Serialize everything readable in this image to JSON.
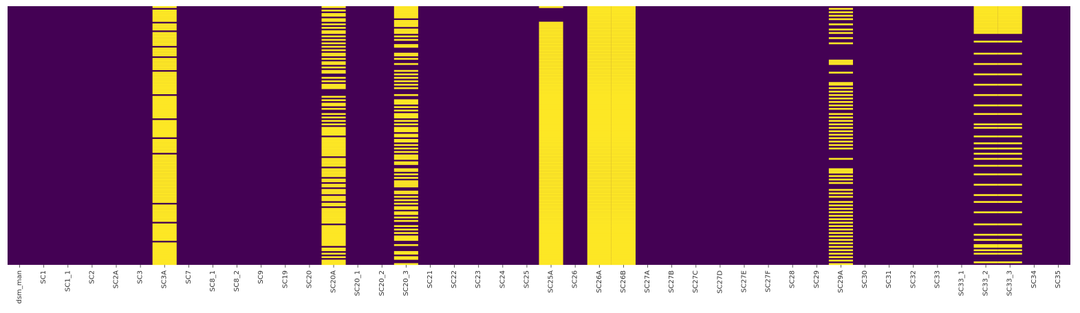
{
  "chart_data": {
    "type": "heatmap",
    "title": "",
    "xlabel": "",
    "ylabel": "",
    "colormap": "viridis",
    "value_meaning": "missing (1) vs present (0)",
    "colors": {
      "present": "#440154",
      "missing": "#fde725"
    },
    "ylim_rows": 150,
    "columns": [
      "dsm_man",
      "SC1",
      "SC1_1",
      "SC2",
      "SC2A",
      "SC3",
      "SC3A",
      "SC7",
      "SC8_1",
      "SC8_2",
      "SC9",
      "SC19",
      "SC20",
      "SC20A",
      "SC20_1",
      "SC20_2",
      "SC20_3",
      "SC21",
      "SC22",
      "SC23",
      "SC24",
      "SC25",
      "SC25A",
      "SC26",
      "SC26A",
      "SC26B",
      "SC27A",
      "SC27B",
      "SC27C",
      "SC27D",
      "SC27E",
      "SC27F",
      "SC28",
      "SC29",
      "SC29A",
      "SC30",
      "SC31",
      "SC32",
      "SC33",
      "SC33_1",
      "SC33_2",
      "SC33_3",
      "SC34",
      "SC35"
    ],
    "missing_rows": {
      "SC3A": [
        0,
        2,
        3,
        4,
        5,
        6,
        7,
        8,
        10,
        11,
        12,
        13,
        15,
        16,
        17,
        18,
        19,
        20,
        21,
        22,
        24,
        25,
        26,
        27,
        28,
        30,
        31,
        32,
        33,
        34,
        35,
        36,
        38,
        39,
        40,
        41,
        42,
        43,
        44,
        45,
        46,
        47,
        48,
        49,
        50,
        52,
        53,
        54,
        55,
        56,
        57,
        58,
        59,
        60,
        61,
        62,
        63,
        64,
        66,
        67,
        68,
        69,
        70,
        71,
        72,
        73,
        74,
        75,
        77,
        78,
        79,
        80,
        81,
        82,
        83,
        84,
        86,
        87,
        88,
        89,
        90,
        91,
        92,
        93,
        94,
        95,
        96,
        97,
        98,
        99,
        100,
        101,
        102,
        103,
        104,
        105,
        106,
        107,
        108,
        109,
        110,
        111,
        112,
        113,
        115,
        116,
        117,
        118,
        119,
        120,
        121,
        122,
        123,
        124,
        126,
        127,
        128,
        129,
        130,
        131,
        132,
        133,
        134,
        135,
        137,
        138,
        139,
        140,
        141,
        142,
        143,
        144,
        145,
        146,
        147,
        148,
        149
      ],
      "SC20A": [
        0,
        2,
        4,
        5,
        7,
        8,
        10,
        12,
        14,
        15,
        17,
        19,
        21,
        23,
        25,
        27,
        28,
        30,
        32,
        33,
        35,
        37,
        38,
        41,
        43,
        45,
        46,
        47,
        52,
        54,
        56,
        57,
        59,
        62,
        64,
        66,
        68,
        70,
        71,
        72,
        73,
        74,
        76,
        77,
        78,
        79,
        80,
        81,
        82,
        83,
        84,
        85,
        86,
        88,
        89,
        90,
        91,
        92,
        94,
        95,
        96,
        97,
        98,
        100,
        101,
        103,
        104,
        106,
        107,
        108,
        110,
        111,
        112,
        114,
        115,
        117,
        118,
        119,
        120,
        121,
        122,
        123,
        124,
        125,
        127,
        128,
        129,
        130,
        131,
        132,
        133,
        134,
        135,
        136,
        137,
        138,
        140,
        141,
        143,
        145,
        147,
        148,
        149
      ],
      "SC20_3": [
        0,
        1,
        2,
        3,
        4,
        5,
        6,
        8,
        9,
        10,
        11,
        13,
        14,
        15,
        17,
        19,
        22,
        23,
        27,
        28,
        30,
        33,
        37,
        39,
        41,
        43,
        45,
        47,
        51,
        54,
        55,
        56,
        58,
        60,
        62,
        63,
        64,
        66,
        68,
        70,
        71,
        72,
        74,
        75,
        77,
        78,
        80,
        82,
        84,
        86,
        87,
        88,
        90,
        91,
        94,
        95,
        97,
        99,
        101,
        102,
        103,
        104,
        107,
        108,
        110,
        112,
        114,
        116,
        117,
        119,
        120,
        122,
        124,
        127,
        129,
        131,
        133,
        134,
        135,
        138,
        142,
        143,
        145,
        146,
        149
      ],
      "SC25A": [
        0,
        9,
        10,
        11,
        12,
        13,
        14,
        15,
        16,
        17,
        18,
        19,
        20,
        21,
        22,
        23,
        24,
        25,
        26,
        27,
        28,
        29,
        30,
        31,
        32,
        33,
        34,
        35,
        36,
        37,
        38,
        39,
        40,
        41,
        42,
        43,
        44,
        45,
        46,
        47,
        48,
        49,
        50,
        51,
        52,
        53,
        54,
        55,
        56,
        57,
        58,
        59,
        60,
        61,
        62,
        63,
        64,
        65,
        66,
        67,
        68,
        69,
        70,
        71,
        72,
        73,
        74,
        75,
        76,
        77,
        78,
        79,
        80,
        81,
        82,
        83,
        84,
        85,
        86,
        87,
        88,
        89,
        90,
        91,
        92,
        93,
        94,
        95,
        96,
        97,
        98,
        99,
        100,
        101,
        102,
        103,
        104,
        105,
        106,
        107,
        108,
        109,
        110,
        111,
        112,
        113,
        114,
        115,
        116,
        117,
        118,
        119,
        120,
        121,
        122,
        123,
        124,
        125,
        126,
        127,
        128,
        129,
        130,
        131,
        132,
        133,
        134,
        135,
        136,
        137,
        138,
        139,
        140,
        141,
        142,
        143,
        144,
        145,
        146,
        147,
        148,
        149
      ],
      "SC26A": [
        0,
        1,
        2,
        3,
        4,
        5,
        6,
        7,
        8,
        9,
        10,
        11,
        12,
        13,
        14,
        15,
        16,
        17,
        18,
        19,
        20,
        21,
        22,
        23,
        24,
        25,
        26,
        27,
        28,
        29,
        30,
        31,
        32,
        33,
        34,
        35,
        36,
        37,
        38,
        39,
        40,
        41,
        42,
        43,
        44,
        45,
        46,
        47,
        48,
        49,
        50,
        51,
        52,
        53,
        54,
        55,
        56,
        57,
        58,
        59,
        60,
        61,
        62,
        63,
        64,
        65,
        66,
        67,
        68,
        69,
        70,
        71,
        72,
        73,
        74,
        75,
        76,
        77,
        78,
        79,
        80,
        81,
        82,
        83,
        84,
        85,
        86,
        87,
        88,
        89,
        90,
        91,
        92,
        93,
        94,
        95,
        96,
        97,
        98,
        99,
        100,
        101,
        102,
        103,
        104,
        105,
        106,
        107,
        108,
        109,
        110,
        111,
        112,
        113,
        114,
        115,
        116,
        117,
        118,
        119,
        120,
        121,
        122,
        123,
        124,
        125,
        126,
        127,
        128,
        129,
        130,
        131,
        132,
        133,
        134,
        135,
        136,
        137,
        138,
        139,
        140,
        141,
        142,
        143,
        144,
        145,
        146,
        147,
        148,
        149
      ],
      "SC26B": [
        0,
        1,
        2,
        3,
        4,
        5,
        6,
        7,
        8,
        9,
        10,
        11,
        12,
        13,
        14,
        15,
        16,
        17,
        18,
        19,
        20,
        21,
        22,
        23,
        24,
        25,
        26,
        27,
        28,
        29,
        30,
        31,
        32,
        33,
        34,
        35,
        36,
        37,
        38,
        39,
        40,
        41,
        42,
        43,
        44,
        45,
        46,
        47,
        48,
        49,
        50,
        51,
        52,
        53,
        54,
        55,
        56,
        57,
        58,
        59,
        60,
        61,
        62,
        63,
        64,
        65,
        66,
        67,
        68,
        69,
        70,
        71,
        72,
        73,
        74,
        75,
        76,
        77,
        78,
        79,
        80,
        81,
        82,
        83,
        84,
        85,
        86,
        87,
        88,
        89,
        90,
        91,
        92,
        93,
        94,
        95,
        96,
        97,
        98,
        99,
        100,
        101,
        102,
        103,
        104,
        105,
        106,
        107,
        108,
        109,
        110,
        111,
        112,
        113,
        114,
        115,
        116,
        117,
        118,
        119,
        120,
        121,
        122,
        123,
        124,
        125,
        126,
        127,
        128,
        129,
        130,
        131,
        132,
        133,
        134,
        135,
        136,
        137,
        138,
        139,
        140,
        141,
        142,
        143,
        144,
        145,
        146,
        147,
        148,
        149
      ],
      "SC29A": [
        1,
        3,
        5,
        7,
        10,
        13,
        15,
        18,
        21,
        31,
        32,
        33,
        38,
        44,
        45,
        47,
        49,
        51,
        53,
        55,
        57,
        59,
        62,
        64,
        66,
        68,
        70,
        72,
        74,
        76,
        78,
        80,
        82,
        88,
        94,
        95,
        96,
        98,
        100,
        102,
        106,
        108,
        110,
        113,
        115,
        117,
        119,
        121,
        123,
        125,
        127,
        129,
        131,
        133,
        135,
        137,
        139,
        141,
        143,
        145,
        147,
        149
      ],
      "SC33_2": [
        0,
        1,
        2,
        3,
        4,
        5,
        6,
        7,
        8,
        9,
        10,
        11,
        12,
        13,
        14,
        15,
        20,
        27,
        33,
        39,
        45,
        51,
        57,
        62,
        68,
        70,
        75,
        79,
        82,
        85,
        88,
        92,
        97,
        103,
        109,
        113,
        119,
        126,
        132,
        135,
        138,
        139,
        141,
        143,
        148
      ],
      "SC33_3": [
        0,
        1,
        2,
        3,
        4,
        5,
        6,
        7,
        8,
        9,
        10,
        11,
        12,
        13,
        14,
        15,
        20,
        27,
        33,
        39,
        45,
        51,
        57,
        62,
        68,
        70,
        75,
        79,
        82,
        85,
        88,
        92,
        97,
        103,
        109,
        113,
        119,
        126,
        132,
        135,
        138,
        139,
        141,
        143,
        148
      ]
    }
  }
}
